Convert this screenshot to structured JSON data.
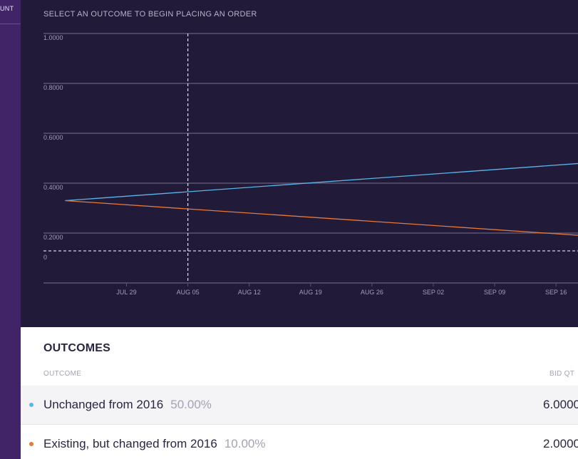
{
  "sidebar": {
    "label": "UNT"
  },
  "chart": {
    "hint": "SELECT AN OUTCOME TO BEGIN PLACING AN ORDER",
    "colors": {
      "background": "#211a38",
      "grid": "#5a5470",
      "series_blue": "#5ab6ea",
      "series_orange": "#e8793a"
    }
  },
  "chart_data": {
    "type": "line",
    "title": "",
    "y_ticks": [
      "1.0000",
      "0.8000",
      "0.6000",
      "0.4000",
      "0.2000",
      "0"
    ],
    "x_ticks": [
      "JUL 29",
      "AUG 05",
      "AUG 12",
      "AUG 19",
      "AUG 26",
      "SEP 02",
      "SEP 09",
      "SEP 16"
    ],
    "ylim": [
      0,
      1
    ],
    "grid": true,
    "marker_date": "AUG 05",
    "series": [
      {
        "color": "#5ab6ea",
        "points": [
          [
            "JUL 22",
            0.33
          ],
          [
            "SEP 19",
            0.48
          ]
        ]
      },
      {
        "color": "#e8793a",
        "points": [
          [
            "JUL 22",
            0.33
          ],
          [
            "SEP 19",
            0.19
          ]
        ]
      }
    ]
  },
  "outcomes": {
    "title": "OUTCOMES",
    "columns": {
      "outcome": "OUTCOME",
      "bid_qty": "BID QT"
    },
    "rows": [
      {
        "name": "Unchanged from 2016",
        "percent": "50.00%",
        "bid_qty": "6.0000",
        "color": "#5ab6ea"
      },
      {
        "name": "Existing, but changed from 2016",
        "percent": "10.00%",
        "bid_qty": "2.0000",
        "color": "#e8793a"
      }
    ]
  }
}
